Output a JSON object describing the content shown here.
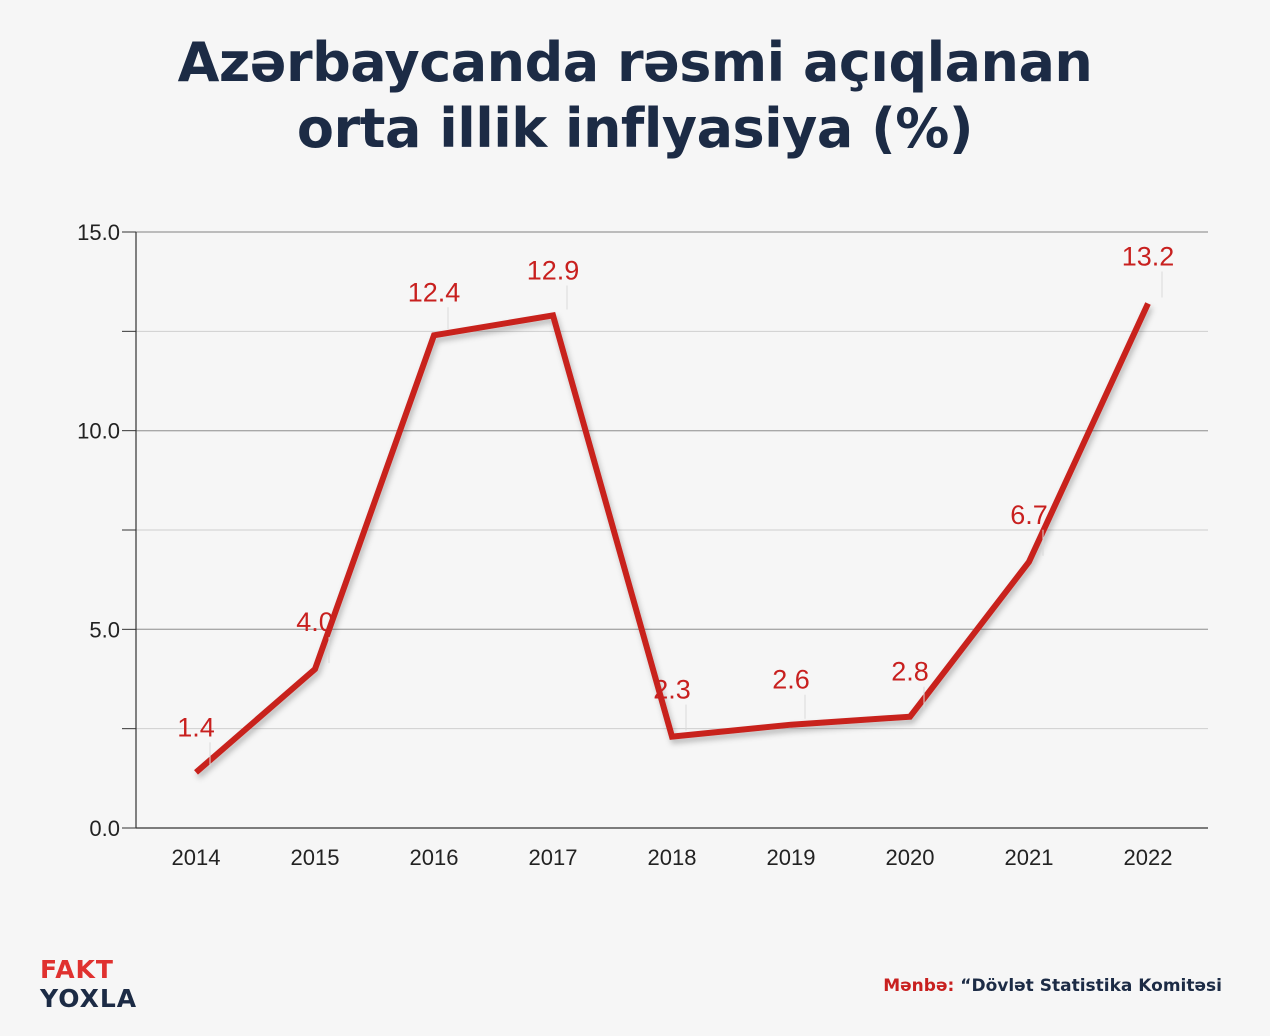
{
  "title": {
    "line1": "Azərbaycanda rəsmi açıqlanan",
    "line2": "orta illik inflyasiya  (%)"
  },
  "chart_data": {
    "type": "line",
    "title": "Azərbaycanda rəsmi açıqlanan orta illik inflyasiya  (%)",
    "categories": [
      "2014",
      "2015",
      "2016",
      "2017",
      "2018",
      "2019",
      "2020",
      "2021",
      "2022"
    ],
    "series": [
      {
        "values": [
          1.4,
          4.0,
          12.4,
          12.9,
          2.3,
          2.6,
          2.8,
          6.7,
          13.2
        ],
        "color": "#c8201f"
      }
    ],
    "data_labels": [
      "1.4",
      "4.0",
      "12.4",
      "12.9",
      "2.3",
      "2.6",
      "2.8",
      "6.7",
      "13.2"
    ],
    "ylim": [
      0,
      15
    ],
    "y_ticks": [
      "0.0",
      "5.0",
      "10.0",
      "15.0"
    ],
    "grid": true,
    "legend": "none"
  },
  "logo": {
    "line1": "FAKT",
    "line2": "YOXLA"
  },
  "source": {
    "label": "Mənbə:",
    "text": "“Dövlət Statistika Komitəsi"
  },
  "colors": {
    "line": "#c8201f",
    "title": "#1c2b45",
    "grid": "#bdbdbd",
    "background": "#f6f6f6"
  }
}
